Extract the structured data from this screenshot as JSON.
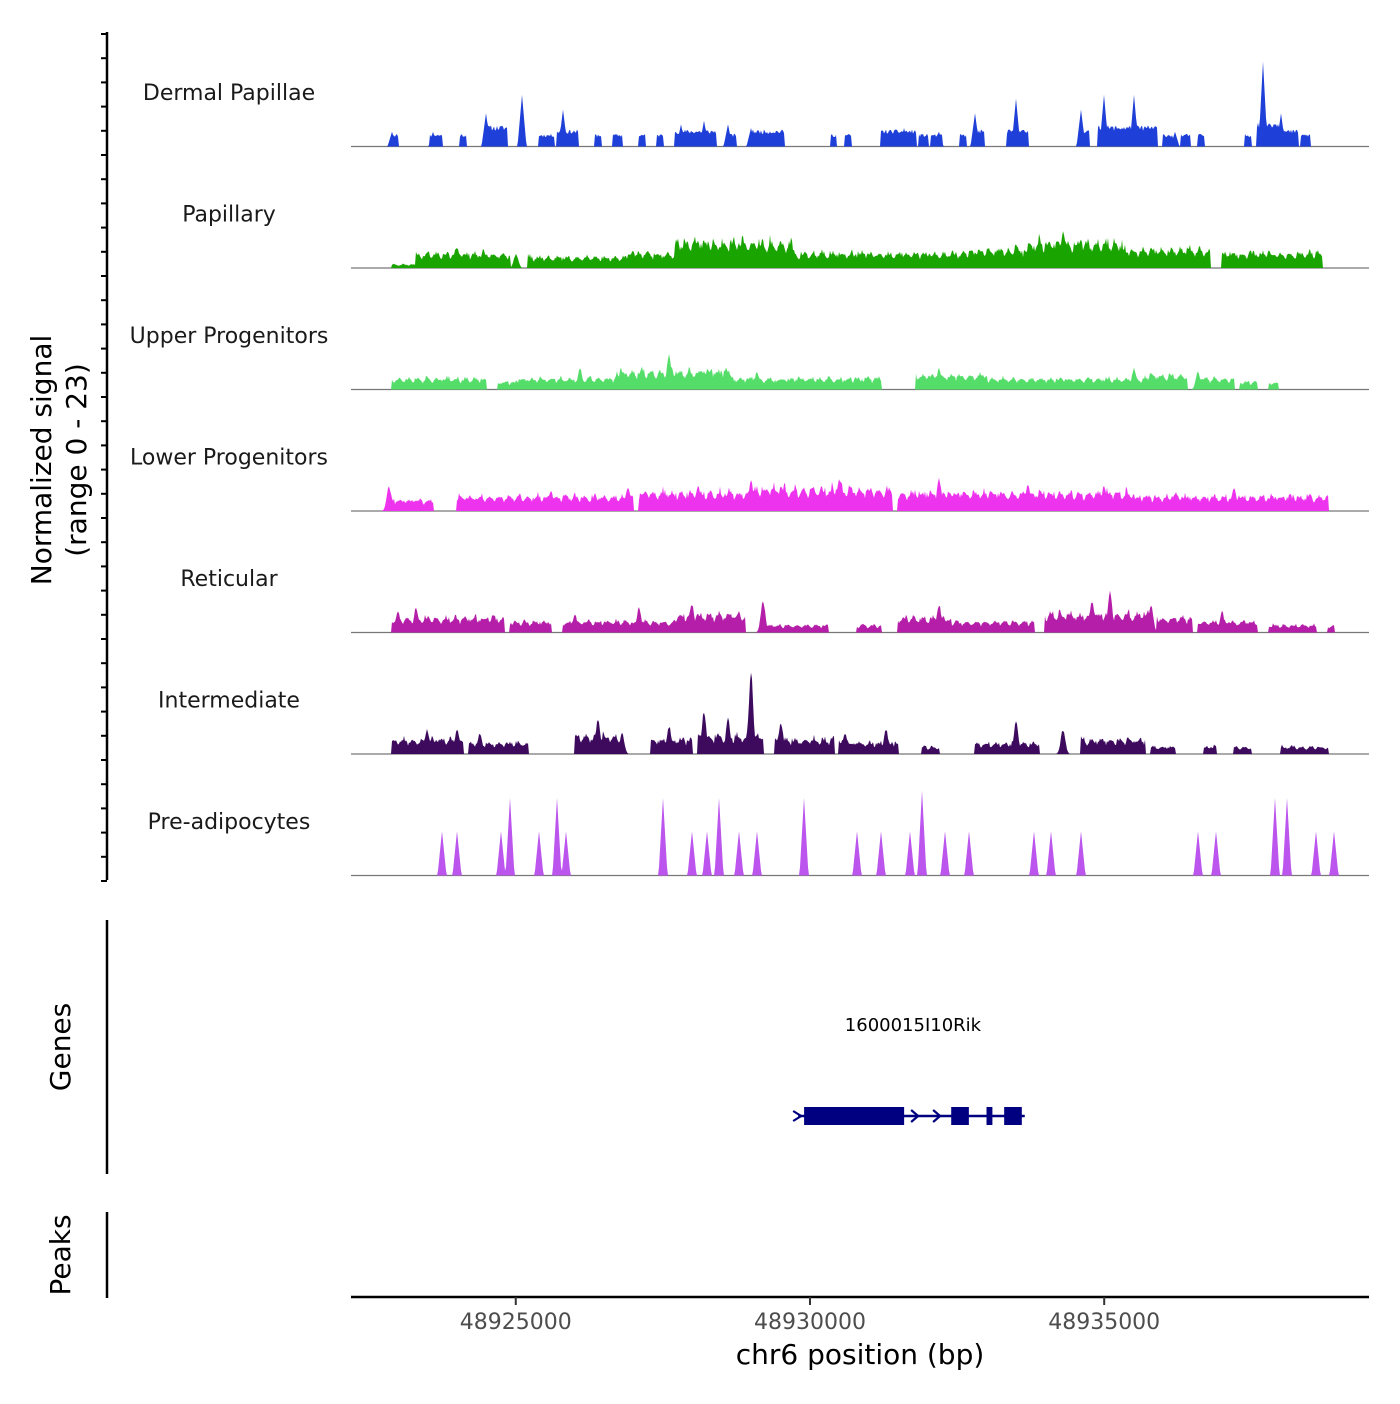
{
  "chart_data": {
    "type": "area",
    "title": "",
    "region": {
      "chromosome": "chr6",
      "start": 48922200,
      "end": 48939500
    },
    "ylabel": "Normalized signal",
    "ylabel_range": "(range 0 - 23)",
    "xlabel": "chr6 position (bp)",
    "ylim": [
      0,
      23
    ],
    "x_ticks": [
      {
        "value": 48925000,
        "label": "48925000"
      },
      {
        "value": 48930000,
        "label": "48930000"
      },
      {
        "value": 48935000,
        "label": "48935000"
      }
    ],
    "series": [
      {
        "name": "Dermal Papillae",
        "color": "#1e3fd8",
        "style": "spiky",
        "seed": 11,
        "peaks": [
          [
            48922900,
            4
          ],
          [
            48923600,
            4
          ],
          [
            48924500,
            9
          ],
          [
            48925100,
            14
          ],
          [
            48925800,
            10
          ],
          [
            48927800,
            6
          ],
          [
            48928200,
            7
          ],
          [
            48928600,
            6
          ],
          [
            48929000,
            5
          ],
          [
            48931600,
            5
          ],
          [
            48932200,
            4
          ],
          [
            48932800,
            9
          ],
          [
            48933500,
            13
          ],
          [
            48934600,
            10
          ],
          [
            48935000,
            14
          ],
          [
            48935500,
            14
          ],
          [
            48936200,
            4
          ],
          [
            48937700,
            23
          ],
          [
            48938000,
            9
          ]
        ],
        "blocks": [
          [
            48922900,
            48923000,
            3
          ],
          [
            48923550,
            48923750,
            3
          ],
          [
            48924050,
            48924150,
            3
          ],
          [
            48924500,
            48924850,
            5
          ],
          [
            48925400,
            48925650,
            3
          ],
          [
            48925700,
            48926050,
            4
          ],
          [
            48926350,
            48926450,
            3
          ],
          [
            48926650,
            48926800,
            3
          ],
          [
            48927100,
            48927200,
            3
          ],
          [
            48927400,
            48927500,
            3
          ],
          [
            48927700,
            48928400,
            4
          ],
          [
            48928600,
            48928750,
            3
          ],
          [
            48929000,
            48929550,
            4
          ],
          [
            48930350,
            48930450,
            3
          ],
          [
            48930600,
            48930700,
            3
          ],
          [
            48931200,
            48931800,
            4
          ],
          [
            48931850,
            48932000,
            3
          ],
          [
            48932050,
            48932250,
            3
          ],
          [
            48932550,
            48932650,
            3
          ],
          [
            48932800,
            48932950,
            4
          ],
          [
            48933350,
            48933700,
            4
          ],
          [
            48934600,
            48934750,
            4
          ],
          [
            48934900,
            48935050,
            5
          ],
          [
            48935050,
            48935900,
            5
          ],
          [
            48936000,
            48936150,
            3
          ],
          [
            48936300,
            48936450,
            3
          ],
          [
            48936600,
            48936700,
            3
          ],
          [
            48937400,
            48937500,
            3
          ],
          [
            48937600,
            48938000,
            6
          ],
          [
            48938000,
            48938300,
            4
          ],
          [
            48938350,
            48938500,
            3
          ]
        ]
      },
      {
        "name": "Papillary",
        "color": "#1aa400",
        "style": "smooth",
        "seed": 23,
        "segments": [
          [
            48922900,
            48923300,
            1
          ],
          [
            48923300,
            48924900,
            4
          ],
          [
            48925200,
            48926900,
            3
          ],
          [
            48926900,
            48927700,
            4
          ],
          [
            48927700,
            48929700,
            7
          ],
          [
            48929700,
            48931600,
            4
          ],
          [
            48931600,
            48932700,
            4
          ],
          [
            48932700,
            48933700,
            5
          ],
          [
            48933700,
            48935300,
            7
          ],
          [
            48935300,
            48936800,
            5
          ],
          [
            48937000,
            48938700,
            4
          ]
        ],
        "peaks": [
          [
            48924000,
            6
          ],
          [
            48925000,
            4
          ],
          [
            48927000,
            5
          ],
          [
            48928100,
            8
          ],
          [
            48928800,
            7
          ],
          [
            48929300,
            6
          ],
          [
            48933500,
            7
          ],
          [
            48934300,
            10
          ],
          [
            48934600,
            8
          ],
          [
            48935800,
            6
          ],
          [
            48937800,
            5
          ]
        ]
      },
      {
        "name": "Upper Progenitors",
        "color": "#55dd6a",
        "style": "smooth",
        "seed": 37,
        "segments": [
          [
            48922900,
            48924500,
            3
          ],
          [
            48924700,
            48925000,
            2
          ],
          [
            48925000,
            48926700,
            3
          ],
          [
            48926700,
            48928700,
            5
          ],
          [
            48928700,
            48929400,
            3
          ],
          [
            48929400,
            48931200,
            3
          ],
          [
            48931800,
            48933000,
            4
          ],
          [
            48933000,
            48935700,
            3
          ],
          [
            48935700,
            48936400,
            4
          ],
          [
            48936600,
            48937200,
            3
          ],
          [
            48937300,
            48937600,
            2
          ],
          [
            48937800,
            48937950,
            2
          ]
        ],
        "peaks": [
          [
            48926100,
            6
          ],
          [
            48927600,
            10
          ],
          [
            48928200,
            5
          ],
          [
            48929100,
            5
          ],
          [
            48932200,
            6
          ],
          [
            48935500,
            6
          ],
          [
            48935800,
            5
          ],
          [
            48936600,
            5
          ]
        ]
      },
      {
        "name": "Lower Progenitors",
        "color": "#ee33ee",
        "style": "smooth",
        "seed": 41,
        "segments": [
          [
            48922800,
            48923600,
            3
          ],
          [
            48924000,
            48927000,
            4
          ],
          [
            48927100,
            48929000,
            5
          ],
          [
            48929000,
            48931400,
            6
          ],
          [
            48931500,
            48932400,
            5
          ],
          [
            48932400,
            48935500,
            5
          ],
          [
            48935500,
            48938800,
            4
          ]
        ],
        "peaks": [
          [
            48922850,
            7
          ],
          [
            48925600,
            6
          ],
          [
            48926900,
            7
          ],
          [
            48928100,
            7
          ],
          [
            48929000,
            9
          ],
          [
            48929500,
            7
          ],
          [
            48930500,
            9
          ],
          [
            48932200,
            9
          ],
          [
            48933700,
            8
          ],
          [
            48935000,
            7
          ],
          [
            48937200,
            7
          ],
          [
            48938500,
            5
          ]
        ]
      },
      {
        "name": "Reticular",
        "color": "#b51ea8",
        "style": "smooth",
        "seed": 53,
        "segments": [
          [
            48922900,
            48924800,
            4
          ],
          [
            48924900,
            48925600,
            3
          ],
          [
            48925800,
            48927700,
            3
          ],
          [
            48927700,
            48928900,
            5
          ],
          [
            48929200,
            48930300,
            2
          ],
          [
            48930800,
            48931200,
            2
          ],
          [
            48931500,
            48932400,
            4
          ],
          [
            48932400,
            48933800,
            3
          ],
          [
            48934000,
            48935800,
            5
          ],
          [
            48935900,
            48936500,
            4
          ],
          [
            48936600,
            48937600,
            3
          ],
          [
            48937800,
            48938600,
            2
          ],
          [
            48938800,
            48938900,
            2
          ]
        ],
        "peaks": [
          [
            48923000,
            6
          ],
          [
            48923300,
            7
          ],
          [
            48926000,
            5
          ],
          [
            48927100,
            7
          ],
          [
            48928000,
            8
          ],
          [
            48928800,
            6
          ],
          [
            48929200,
            9
          ],
          [
            48932200,
            8
          ],
          [
            48934800,
            9
          ],
          [
            48935100,
            12
          ],
          [
            48935800,
            8
          ],
          [
            48937000,
            6
          ]
        ]
      },
      {
        "name": "Intermediate",
        "color": "#3d0a5e",
        "style": "smooth",
        "seed": 67,
        "segments": [
          [
            48922900,
            48924100,
            4
          ],
          [
            48924200,
            48925200,
            3
          ],
          [
            48926000,
            48926800,
            5
          ],
          [
            48927300,
            48928000,
            4
          ],
          [
            48928100,
            48929200,
            5
          ],
          [
            48929400,
            48930400,
            4
          ],
          [
            48930500,
            48931500,
            3
          ],
          [
            48931900,
            48932200,
            2
          ],
          [
            48932800,
            48933900,
            3
          ],
          [
            48934600,
            48935700,
            4
          ],
          [
            48935800,
            48936200,
            2
          ],
          [
            48936700,
            48936900,
            2
          ],
          [
            48937200,
            48937500,
            2
          ],
          [
            48938000,
            48938800,
            2
          ]
        ],
        "peaks": [
          [
            48923500,
            7
          ],
          [
            48924000,
            7
          ],
          [
            48924400,
            6
          ],
          [
            48926400,
            10
          ],
          [
            48926800,
            6
          ],
          [
            48927600,
            8
          ],
          [
            48928200,
            12
          ],
          [
            48928600,
            10
          ],
          [
            48929000,
            23
          ],
          [
            48929500,
            9
          ],
          [
            48930600,
            6
          ],
          [
            48931300,
            7
          ],
          [
            48933500,
            9
          ],
          [
            48934300,
            7
          ],
          [
            48935400,
            5
          ]
        ]
      },
      {
        "name": "Pre-adipocytes",
        "color": "#bb55ee",
        "style": "spiky",
        "seed": 79,
        "peaks": [
          [
            48923750,
            12
          ],
          [
            48924000,
            12
          ],
          [
            48924750,
            12
          ],
          [
            48924900,
            21
          ],
          [
            48925400,
            12
          ],
          [
            48925700,
            21
          ],
          [
            48925850,
            12
          ],
          [
            48927500,
            21
          ],
          [
            48928000,
            12
          ],
          [
            48928250,
            12
          ],
          [
            48928450,
            21
          ],
          [
            48928800,
            12
          ],
          [
            48929100,
            12
          ],
          [
            48929900,
            21
          ],
          [
            48930800,
            12
          ],
          [
            48931200,
            12
          ],
          [
            48931700,
            12
          ],
          [
            48931900,
            23
          ],
          [
            48932300,
            12
          ],
          [
            48932700,
            12
          ],
          [
            48933800,
            12
          ],
          [
            48934100,
            12
          ],
          [
            48934600,
            12
          ],
          [
            48936600,
            12
          ],
          [
            48936900,
            12
          ],
          [
            48937900,
            21
          ],
          [
            48938100,
            21
          ],
          [
            48938600,
            12
          ],
          [
            48938900,
            12
          ]
        ],
        "blocks": []
      }
    ],
    "genes": [
      {
        "name": "1600015I10Rik",
        "start": 48929850,
        "end": 48933650,
        "strand": "+",
        "exons": [
          [
            48929900,
            48931600
          ],
          [
            48932400,
            48932700
          ],
          [
            48933000,
            48933100
          ],
          [
            48933300,
            48933600
          ]
        ]
      }
    ],
    "panels": {
      "genes_label": "Genes",
      "peaks_label": "Peaks"
    }
  }
}
